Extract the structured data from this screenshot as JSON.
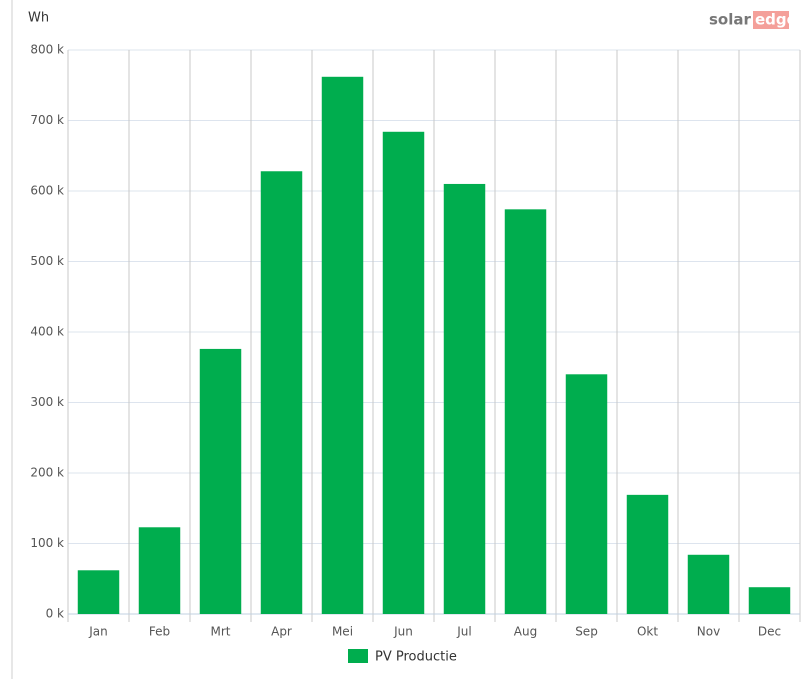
{
  "chart_data": {
    "type": "bar",
    "y_label": "Wh",
    "logo": [
      "solar",
      "edge"
    ],
    "categories": [
      "Jan",
      "Feb",
      "Mrt",
      "Apr",
      "Mei",
      "Jun",
      "Jul",
      "Aug",
      "Sep",
      "Okt",
      "Nov",
      "Dec"
    ],
    "series": [
      {
        "name": "PV Productie",
        "color": "#00ad4e",
        "values": [
          62000,
          123000,
          376000,
          628000,
          762000,
          684000,
          610000,
          574000,
          340000,
          169000,
          84000,
          38000
        ]
      }
    ],
    "ylim": [
      0,
      800000
    ],
    "yticks": [
      {
        "value": 0,
        "label": "0 k"
      },
      {
        "value": 100000,
        "label": "100 k"
      },
      {
        "value": 200000,
        "label": "200 k"
      },
      {
        "value": 300000,
        "label": "300 k"
      },
      {
        "value": 400000,
        "label": "400 k"
      },
      {
        "value": 500000,
        "label": "500 k"
      },
      {
        "value": 600000,
        "label": "600 k"
      },
      {
        "value": 700000,
        "label": "700 k"
      },
      {
        "value": 800000,
        "label": "800 k"
      }
    ],
    "grid": true,
    "legend": "bottom"
  }
}
